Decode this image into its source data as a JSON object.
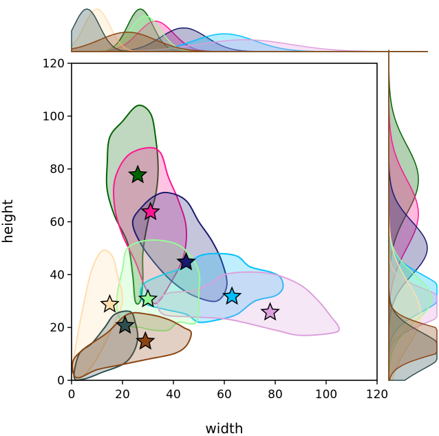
{
  "chart_data": {
    "type": "scatter",
    "subtype": "jointplot-kde",
    "xlabel": "width",
    "ylabel": "height",
    "xlim": [
      0,
      120
    ],
    "ylim": [
      0,
      120
    ],
    "xticks": [
      "0",
      "20",
      "40",
      "60",
      "80",
      "100",
      "120"
    ],
    "yticks": [
      "0",
      "20",
      "40",
      "60",
      "80",
      "100",
      "120"
    ],
    "series": [
      {
        "name": "darkgreen",
        "color": "#006400",
        "center": [
          26,
          78
        ],
        "marg": {
          "xm": 27,
          "xs": 5,
          "ym": 76,
          "ys": 13
        },
        "contour": [
          [
            26,
            104
          ],
          [
            31,
            101
          ],
          [
            33,
            92
          ],
          [
            34,
            80
          ],
          [
            33,
            70
          ],
          [
            30,
            60
          ],
          [
            28,
            48
          ],
          [
            28,
            38
          ],
          [
            27,
            30
          ],
          [
            25,
            30
          ],
          [
            24,
            40
          ],
          [
            22,
            52
          ],
          [
            17,
            62
          ],
          [
            14,
            72
          ],
          [
            14,
            82
          ],
          [
            15,
            92
          ],
          [
            20,
            98
          ]
        ]
      },
      {
        "name": "deeppink",
        "color": "#ff1493",
        "center": [
          31,
          64
        ],
        "marg": {
          "xm": 33,
          "xs": 7,
          "ym": 63,
          "ys": 13
        },
        "contour": [
          [
            30,
            88
          ],
          [
            35,
            86
          ],
          [
            38,
            77
          ],
          [
            42,
            68
          ],
          [
            45,
            58
          ],
          [
            44,
            47
          ],
          [
            39,
            37
          ],
          [
            33,
            29
          ],
          [
            29,
            35
          ],
          [
            25,
            45
          ],
          [
            20,
            55
          ],
          [
            17,
            65
          ],
          [
            17,
            76
          ],
          [
            22,
            85
          ]
        ]
      },
      {
        "name": "midnightblue",
        "color": "#191970",
        "center": [
          45,
          45
        ],
        "marg": {
          "xm": 44,
          "xs": 9,
          "ym": 50,
          "ys": 10
        },
        "contour": [
          [
            38,
            71
          ],
          [
            45,
            68
          ],
          [
            50,
            60
          ],
          [
            55,
            53
          ],
          [
            59,
            45
          ],
          [
            61,
            36
          ],
          [
            57,
            30
          ],
          [
            48,
            32
          ],
          [
            40,
            37
          ],
          [
            33,
            44
          ],
          [
            27,
            52
          ],
          [
            24,
            60
          ],
          [
            28,
            66
          ],
          [
            33,
            70
          ]
        ]
      },
      {
        "name": "deepskyblue",
        "color": "#00bfff",
        "center": [
          63,
          32
        ],
        "marg": {
          "xm": 60,
          "xs": 12,
          "ym": 33,
          "ys": 7
        },
        "contour": [
          [
            57,
            48
          ],
          [
            65,
            47
          ],
          [
            70,
            43
          ],
          [
            78,
            41
          ],
          [
            82,
            39
          ],
          [
            83,
            35
          ],
          [
            80,
            32
          ],
          [
            72,
            30
          ],
          [
            65,
            25
          ],
          [
            58,
            23
          ],
          [
            50,
            22
          ],
          [
            45,
            25
          ],
          [
            36,
            27
          ],
          [
            29,
            29
          ],
          [
            27,
            33
          ],
          [
            29,
            37
          ],
          [
            36,
            40
          ],
          [
            45,
            43
          ],
          [
            50,
            47
          ]
        ]
      },
      {
        "name": "plum",
        "color": "#dda0dd",
        "center": [
          78,
          26
        ],
        "marg": {
          "xm": 68,
          "xs": 18,
          "ym": 28,
          "ys": 6
        },
        "contour": [
          [
            60,
            40
          ],
          [
            70,
            41
          ],
          [
            80,
            40
          ],
          [
            90,
            36
          ],
          [
            97,
            30
          ],
          [
            102,
            24
          ],
          [
            105,
            20
          ],
          [
            103,
            18
          ],
          [
            90,
            17
          ],
          [
            80,
            19
          ],
          [
            62,
            23
          ],
          [
            47,
            24
          ],
          [
            36,
            25
          ],
          [
            34,
            30
          ],
          [
            38,
            33
          ],
          [
            48,
            34
          ],
          [
            55,
            37
          ]
        ]
      },
      {
        "name": "palegreen",
        "color": "#98fb98",
        "center": [
          30,
          31
        ],
        "marg": {
          "xm": 29,
          "xs": 6,
          "ym": 31,
          "ys": 9
        },
        "contour": [
          [
            22,
            50
          ],
          [
            30,
            53
          ],
          [
            40,
            52
          ],
          [
            46,
            48
          ],
          [
            50,
            41
          ],
          [
            50,
            33
          ],
          [
            49,
            22
          ],
          [
            42,
            22
          ],
          [
            38,
            19
          ],
          [
            32,
            19
          ],
          [
            27,
            20
          ],
          [
            21,
            21
          ],
          [
            18,
            26
          ],
          [
            18,
            33
          ],
          [
            20,
            42
          ]
        ]
      },
      {
        "name": "navajowhite",
        "color": "#ffdead",
        "center": [
          15,
          29
        ],
        "marg": {
          "xm": 10,
          "xs": 5,
          "ym": 25,
          "ys": 12
        },
        "contour": [
          [
            12,
            49
          ],
          [
            16,
            47
          ],
          [
            18,
            40
          ],
          [
            20,
            30
          ],
          [
            16,
            20
          ],
          [
            11,
            10
          ],
          [
            6,
            3
          ],
          [
            2,
            0.5
          ],
          [
            0.5,
            5
          ],
          [
            2,
            15
          ],
          [
            5,
            30
          ],
          [
            8,
            42
          ]
        ]
      },
      {
        "name": "darkslategray",
        "color": "#2f4f4f",
        "center": [
          21,
          21
        ],
        "marg": {
          "xm": 6,
          "xs": 5,
          "ym": 11,
          "ys": 7
        },
        "contour": [
          [
            17,
            25
          ],
          [
            23,
            26
          ],
          [
            25,
            22
          ],
          [
            26,
            16
          ],
          [
            24,
            10
          ],
          [
            20,
            6
          ],
          [
            12,
            3
          ],
          [
            5,
            0.5
          ],
          [
            1,
            1
          ],
          [
            3,
            10
          ],
          [
            8,
            14
          ],
          [
            13,
            20
          ]
        ]
      },
      {
        "name": "saddlebrown",
        "color": "#8b4513",
        "center": [
          29,
          15
        ],
        "marg": {
          "xm": 22,
          "xs": 11,
          "ym": 15,
          "ys": 5
        },
        "contour": [
          [
            22,
            25
          ],
          [
            30,
            25
          ],
          [
            38,
            23
          ],
          [
            44,
            20
          ],
          [
            47,
            18
          ],
          [
            45,
            13
          ],
          [
            40,
            10
          ],
          [
            30,
            8
          ],
          [
            20,
            6
          ],
          [
            10,
            4
          ],
          [
            2,
            1
          ],
          [
            0.5,
            7
          ],
          [
            5,
            12
          ],
          [
            14,
            18
          ]
        ]
      }
    ]
  }
}
